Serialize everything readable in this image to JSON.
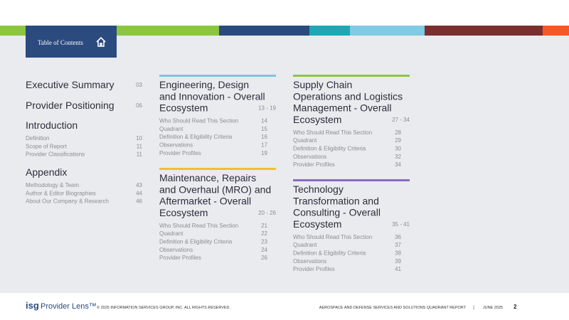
{
  "header": {
    "title": "Table of Contents"
  },
  "left": [
    {
      "title": "Executive Summary",
      "page": "03"
    },
    {
      "title": "Provider Positioning",
      "page": "06"
    },
    {
      "title": "Introduction",
      "items": [
        {
          "label": "Definition",
          "page": "10"
        },
        {
          "label": "Scope of Report",
          "page": "11"
        },
        {
          "label": "Provider Classifications",
          "page": "11"
        }
      ]
    },
    {
      "title": "Appendix",
      "items": [
        {
          "label": "Methodology & Team",
          "page": "43"
        },
        {
          "label": "Author & Editor Biographies",
          "page": "44"
        },
        {
          "label": "About Our Company & Research",
          "page": "46"
        }
      ]
    }
  ],
  "sections": [
    {
      "title": [
        "Engineering, Design",
        "and Innovation - Overall",
        "Ecosystem"
      ],
      "pages": "13 - 19",
      "items": [
        {
          "label": "Who Should Read This Section",
          "page": "14"
        },
        {
          "label": "Quadrant",
          "page": "15"
        },
        {
          "label": "Definition & Eligibility Criteria",
          "page": "16"
        },
        {
          "label": "Observations",
          "page": "17"
        },
        {
          "label": "Provider Profiles",
          "page": "19"
        }
      ]
    },
    {
      "title": [
        "Maintenance, Repairs",
        "and Overhaul (MRO) and",
        "Aftermarket - Overall",
        "Ecosystem"
      ],
      "pages": "20 - 26",
      "items": [
        {
          "label": "Who Should Read This Section",
          "page": "21"
        },
        {
          "label": "Quadrant",
          "page": "22"
        },
        {
          "label": "Definition & Eligibility Criteria",
          "page": "23"
        },
        {
          "label": "Observations",
          "page": "24"
        },
        {
          "label": "Provider Profiles",
          "page": "26"
        }
      ]
    },
    {
      "title": [
        "Supply Chain",
        "Operations and Logistics",
        "Management - Overall",
        "Ecosystem"
      ],
      "pages": "27 - 34",
      "items": [
        {
          "label": "Who Should Read This Section",
          "page": "28"
        },
        {
          "label": "Quadrant",
          "page": "29"
        },
        {
          "label": "Definition & Eligibility Criteria",
          "page": "30"
        },
        {
          "label": "Observations",
          "page": "32"
        },
        {
          "label": "Provider Profiles",
          "page": "34"
        }
      ]
    },
    {
      "title": [
        "Technology",
        "Transformation and",
        "Consulting - Overall",
        "Ecosystem"
      ],
      "pages": "35 - 41",
      "items": [
        {
          "label": "Who Should Read This Section",
          "page": "36"
        },
        {
          "label": "Quadrant",
          "page": "37"
        },
        {
          "label": "Definition & Eligibility Criteria",
          "page": "38"
        },
        {
          "label": "Observations",
          "page": "39"
        },
        {
          "label": "Provider Profiles",
          "page": "41"
        }
      ]
    }
  ],
  "footer": {
    "brand": "isg",
    "product": "Provider Lens™",
    "copyright": "© 2025 INFORMATION SERVICES GROUP, INC. ALL RIGHTS RESERVED.",
    "report": "AEROSPACE AND DEFENSE SERVICES AND SOLUTIONS QUADRANT REPORT",
    "separator": "|",
    "date": "JUNE 2025",
    "page": "2"
  }
}
